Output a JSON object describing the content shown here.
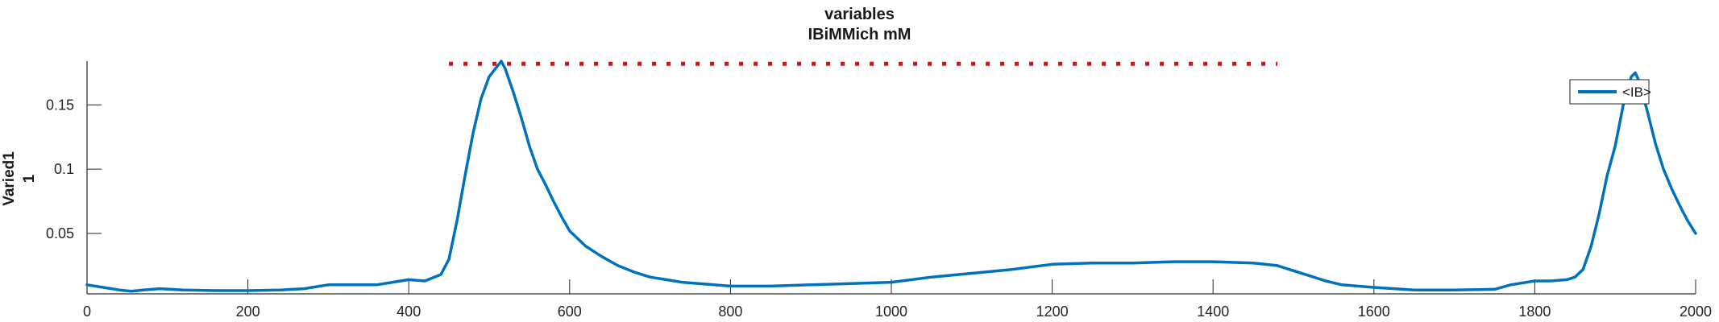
{
  "chart_data": {
    "type": "line",
    "title": [
      "variables",
      "IBiMMich mM"
    ],
    "ylabel": [
      "Varied1",
      "1"
    ],
    "xlabel": "",
    "xlim": [
      0,
      2000
    ],
    "ylim": [
      0.003,
      0.184
    ],
    "xticks": [
      0,
      200,
      400,
      600,
      800,
      1000,
      1200,
      1400,
      1600,
      1800,
      2000
    ],
    "xtick_labels": [
      "0",
      "200",
      "400",
      "600",
      "800",
      "1000",
      "1200",
      "1400",
      "1600",
      "1800",
      "2000"
    ],
    "yticks": [
      0.05,
      0.1,
      0.15
    ],
    "ytick_labels": [
      "0.05",
      "0.1",
      "0.15"
    ],
    "grid": false,
    "legend": {
      "position": "top-right",
      "entries": [
        "<IB>"
      ]
    },
    "series": [
      {
        "name": "<IB>",
        "color": "#0072BD",
        "style": "solid",
        "x": [
          0,
          20,
          40,
          55,
          70,
          90,
          120,
          160,
          200,
          240,
          270,
          290,
          300,
          320,
          360,
          380,
          390,
          400,
          420,
          440,
          450,
          460,
          470,
          480,
          490,
          500,
          505,
          510,
          515,
          520,
          530,
          540,
          550,
          560,
          570,
          580,
          590,
          600,
          620,
          640,
          660,
          680,
          700,
          720,
          740,
          760,
          780,
          800,
          850,
          900,
          950,
          1000,
          1050,
          1100,
          1150,
          1200,
          1250,
          1300,
          1350,
          1400,
          1450,
          1480,
          1500,
          1520,
          1540,
          1560,
          1580,
          1600,
          1650,
          1700,
          1750,
          1770,
          1790,
          1800,
          1820,
          1840,
          1850,
          1860,
          1870,
          1880,
          1890,
          1900,
          1910,
          1920,
          1925,
          1930,
          1940,
          1950,
          1960,
          1970,
          1980,
          1990,
          2000
        ],
        "y": [
          0.01,
          0.008,
          0.006,
          0.005,
          0.006,
          0.007,
          0.006,
          0.0055,
          0.0055,
          0.006,
          0.007,
          0.009,
          0.01,
          0.01,
          0.01,
          0.012,
          0.013,
          0.014,
          0.013,
          0.018,
          0.03,
          0.06,
          0.095,
          0.128,
          0.155,
          0.172,
          0.176,
          0.18,
          0.184,
          0.178,
          0.16,
          0.14,
          0.118,
          0.1,
          0.088,
          0.075,
          0.063,
          0.052,
          0.04,
          0.032,
          0.025,
          0.02,
          0.016,
          0.014,
          0.012,
          0.011,
          0.01,
          0.009,
          0.009,
          0.01,
          0.011,
          0.012,
          0.016,
          0.019,
          0.022,
          0.026,
          0.027,
          0.027,
          0.028,
          0.028,
          0.027,
          0.025,
          0.021,
          0.017,
          0.013,
          0.01,
          0.009,
          0.008,
          0.006,
          0.006,
          0.0065,
          0.01,
          0.012,
          0.013,
          0.013,
          0.014,
          0.016,
          0.022,
          0.04,
          0.065,
          0.095,
          0.118,
          0.15,
          0.172,
          0.175,
          0.168,
          0.145,
          0.12,
          0.1,
          0.085,
          0.072,
          0.06,
          0.05
        ]
      },
      {
        "name": "",
        "color": "#FF0000",
        "style": "dotted",
        "x": [
          450,
          1480
        ],
        "y": [
          0.182,
          0.182
        ]
      }
    ]
  }
}
